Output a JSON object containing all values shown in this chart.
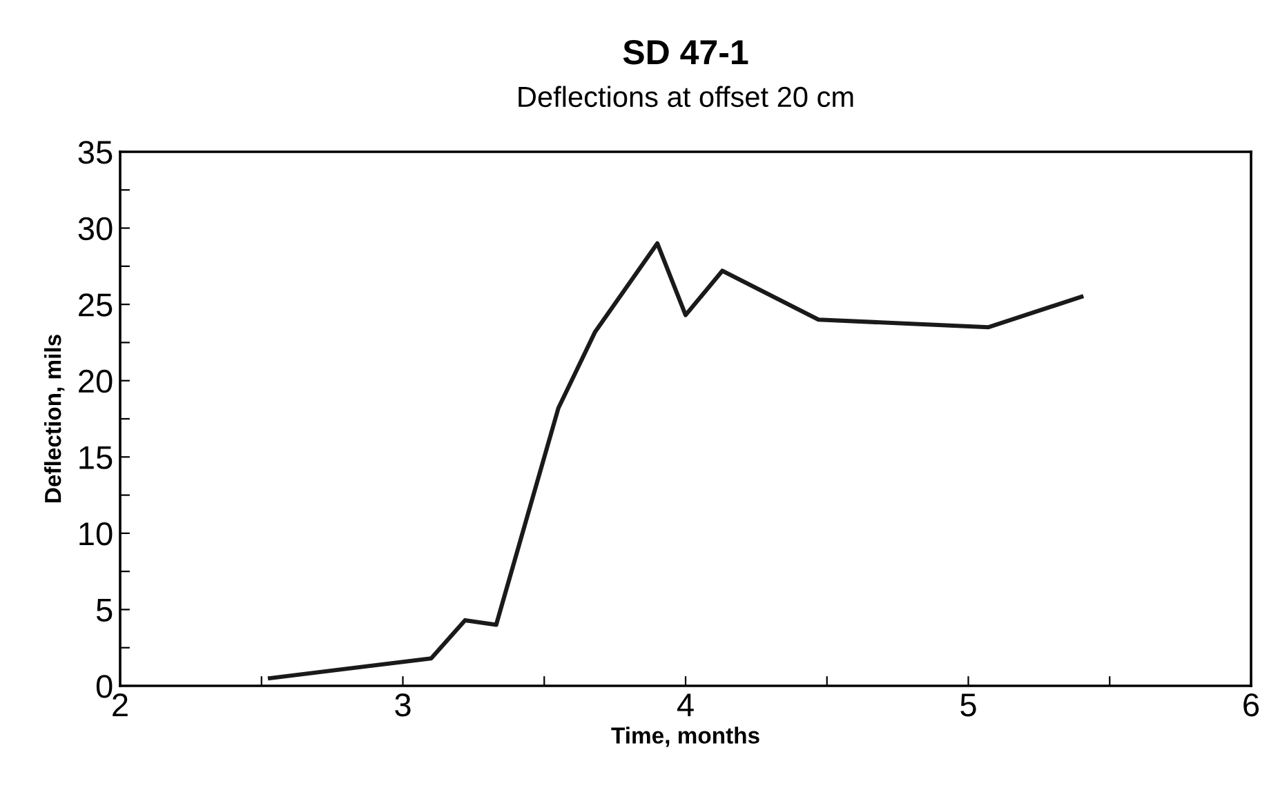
{
  "chart_data": {
    "type": "line",
    "title": "SD 47-1",
    "subtitle": "Deflections at offset 20 cm",
    "xlabel": "Time, months",
    "ylabel": "Deflection, mils",
    "x": [
      2.53,
      3.1,
      3.22,
      3.33,
      3.55,
      3.68,
      3.9,
      4.0,
      4.13,
      4.47,
      5.07,
      5.4
    ],
    "series": [
      {
        "color": "#1a1a1a",
        "values": [
          0.5,
          1.8,
          4.3,
          4.0,
          18.2,
          23.2,
          29.0,
          24.3,
          27.2,
          24.0,
          23.5,
          25.5
        ]
      }
    ],
    "xlim": [
      2,
      6
    ],
    "ylim": [
      0,
      35
    ],
    "xticks": [
      2,
      {
        "value": 2.5,
        "label": null
      },
      3,
      {
        "value": 3.5,
        "label": null
      },
      4,
      {
        "value": 4.5,
        "label": null
      },
      5,
      {
        "value": 5.5,
        "label": null
      },
      6
    ],
    "yticks": [
      0,
      {
        "value": 2.5,
        "label": null
      },
      5,
      {
        "value": 7.5,
        "label": null
      },
      10,
      {
        "value": 12.5,
        "label": null
      },
      15,
      {
        "value": 17.5,
        "label": null
      },
      20,
      {
        "value": 22.5,
        "label": null
      },
      25,
      {
        "value": 27.5,
        "label": null
      },
      30,
      {
        "value": 32.5,
        "label": null
      },
      35
    ],
    "grid": false,
    "legend": false,
    "marker": "none",
    "line_style": "solid"
  }
}
